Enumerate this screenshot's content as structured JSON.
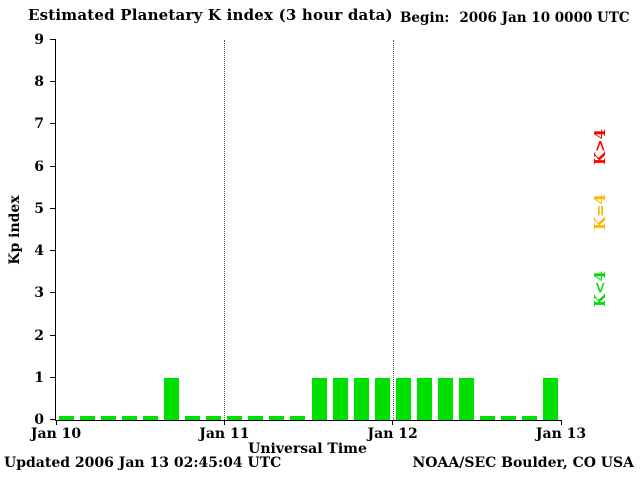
{
  "title": "Estimated Planetary K index (3 hour data)",
  "begin_label": "Begin:",
  "begin_value": "2006 Jan 10 0000 UTC",
  "footer": {
    "updated": "Updated 2006 Jan 13 02:45:04 UTC",
    "source": "NOAA/SEC Boulder, CO USA"
  },
  "legend": [
    {
      "label": "K>4",
      "color": "#ff0000"
    },
    {
      "label": "K=4",
      "color": "#ffb400"
    },
    {
      "label": "K<4",
      "color": "#00dd00"
    }
  ],
  "chart_data": {
    "type": "bar",
    "title": "Estimated Planetary K index (3 hour data)",
    "xlabel": "Universal Time",
    "ylabel": "Kp index",
    "ylim": [
      0,
      9
    ],
    "y_ticks": [
      0,
      1,
      2,
      3,
      4,
      5,
      6,
      7,
      8,
      9
    ],
    "x_ticks": [
      "Jan 10",
      "Jan 11",
      "Jan 12",
      "Jan 13"
    ],
    "grid_tick_indexes": [
      1,
      2
    ],
    "interval_hours": 3,
    "start": "2006 Jan 10 0000 UTC",
    "values": [
      0,
      0,
      0,
      0,
      0,
      1,
      0,
      0,
      0,
      0,
      0,
      0,
      1,
      1,
      1,
      1,
      1,
      1,
      1,
      1,
      0,
      0,
      0,
      1
    ],
    "colors": {
      "low": "#00e000",
      "mid": "#ffb400",
      "high": "#ff0000"
    },
    "legend_position": "right",
    "grid": "vertical-dotted-day-boundaries"
  }
}
